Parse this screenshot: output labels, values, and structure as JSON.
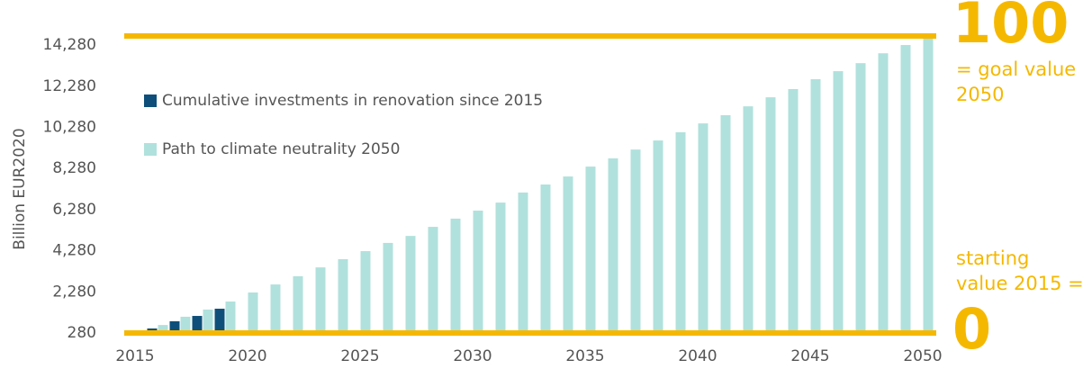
{
  "chart_data": {
    "type": "bar",
    "y_label": "Billion EUR2020",
    "categories": [
      "2015",
      null,
      null,
      null,
      null,
      "2020",
      null,
      null,
      null,
      null,
      "2025",
      null,
      null,
      null,
      null,
      "2030",
      null,
      null,
      null,
      null,
      "2035",
      null,
      null,
      null,
      null,
      "2040",
      null,
      null,
      null,
      null,
      "2045",
      null,
      null,
      null,
      null,
      "2050"
    ],
    "series": [
      {
        "name": "Cumulative investments in renovation since 2015",
        "color": "#0d4f7a",
        "values": [
          280,
          500,
          850,
          1110,
          1460,
          null,
          null,
          null,
          null,
          null,
          null,
          null,
          null,
          null,
          null,
          null,
          null,
          null,
          null,
          null,
          null,
          null,
          null,
          null,
          null,
          null,
          null,
          null,
          null,
          null,
          null,
          null,
          null,
          null,
          null,
          null
        ]
      },
      {
        "name": "Path to climate neutrality 2050",
        "color": "#b1e1dc",
        "values": [
          280,
          670,
          1070,
          1420,
          1810,
          2250,
          2640,
          3040,
          3470,
          3870,
          4260,
          4660,
          5000,
          5440,
          5840,
          6230,
          6620,
          7110,
          7500,
          7890,
          8370,
          8770,
          9200,
          9640,
          10040,
          10470,
          10870,
          11300,
          11740,
          12140,
          12620,
          13010,
          13400,
          13880,
          14280,
          14720
        ]
      }
    ],
    "ylim": [
      280,
      14720
    ],
    "yticks": [
      280,
      {
        "value": 2280,
        "label": "2,280"
      },
      {
        "value": 4280,
        "label": "4,280"
      },
      {
        "value": 6280,
        "label": "6,280"
      },
      {
        "value": 8280,
        "label": "8,280"
      },
      {
        "value": 10280,
        "label": "10,280"
      },
      {
        "value": 12280,
        "label": "12,280"
      },
      {
        "value": 14280,
        "label": "14,280"
      }
    ],
    "reference_lines": {
      "values": [
        280,
        14720
      ],
      "color": "#f5b800"
    },
    "annotations": [
      "100",
      "= goal value",
      "2050",
      "starting",
      "value 2015 =",
      "0"
    ]
  }
}
